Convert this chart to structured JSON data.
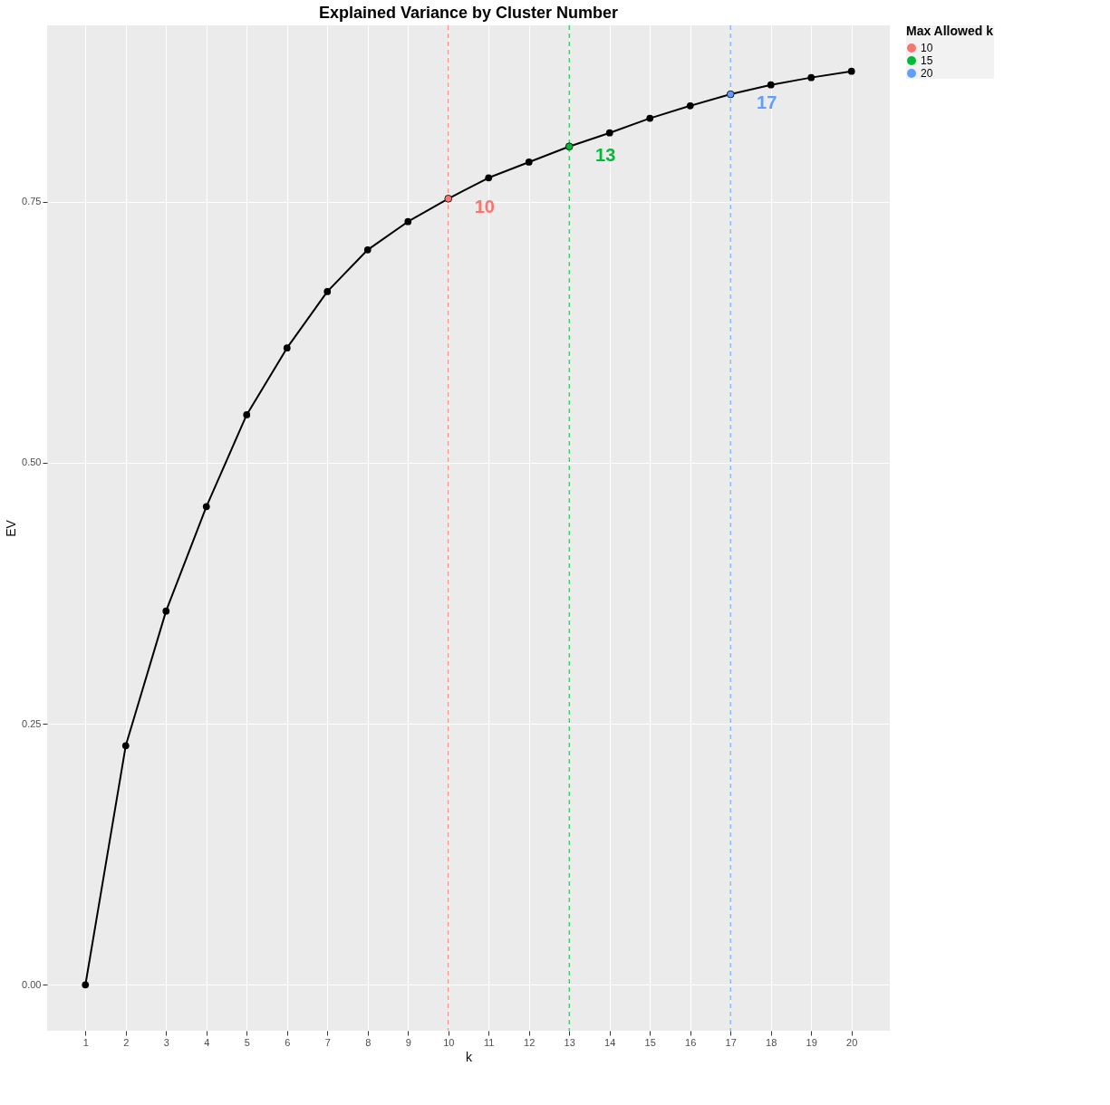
{
  "chart_data": {
    "type": "line",
    "title": "Explained Variance by Cluster Number",
    "xlabel": "k",
    "ylabel": "EV",
    "legend_title": "Max Allowed k",
    "xlim": [
      0.05,
      20.95
    ],
    "xticks": [
      1,
      2,
      3,
      4,
      5,
      6,
      7,
      8,
      9,
      10,
      11,
      12,
      13,
      14,
      15,
      16,
      17,
      18,
      19,
      20
    ],
    "ylim": [
      -0.044,
      0.919
    ],
    "yticks": [
      {
        "value": 0,
        "label": "0.00"
      },
      {
        "value": 0.25,
        "label": "0.25"
      },
      {
        "value": 0.5,
        "label": "0.50"
      },
      {
        "value": 0.75,
        "label": "0.75"
      }
    ],
    "grid": true,
    "legend": "right",
    "marker": "circle",
    "line_style": "solid",
    "series": [
      {
        "color": "#000000",
        "x": [
          1,
          2,
          3,
          4,
          5,
          6,
          7,
          8,
          9,
          10,
          11,
          12,
          13,
          14,
          15,
          16,
          17,
          18,
          19,
          20
        ],
        "values": [
          0,
          0.229,
          0.358,
          0.458,
          0.546,
          0.61,
          0.664,
          0.704,
          0.731,
          0.753,
          0.773,
          0.788,
          0.803,
          0.816,
          0.83,
          0.842,
          0.853,
          0.862,
          0.869,
          0.875
        ]
      },
      {
        "type": "scatter",
        "name": "10",
        "color": "#f8766d",
        "x": [
          10
        ],
        "values": [
          0.753
        ]
      },
      {
        "type": "scatter",
        "name": "15",
        "color": "#00ba38",
        "x": [
          13
        ],
        "values": [
          0.803
        ]
      },
      {
        "type": "scatter",
        "name": "20",
        "color": "#619cff",
        "x": [
          17
        ],
        "values": [
          0.853
        ]
      }
    ],
    "ref_lines": [
      {
        "axis": "x",
        "value": 10,
        "color": "#f8766d",
        "line_style": "dashed"
      },
      {
        "axis": "x",
        "value": 13,
        "color": "#00ba38",
        "line_style": "dashed"
      },
      {
        "axis": "x",
        "value": 17,
        "color": "#619cff",
        "line_style": "dashed"
      }
    ],
    "annotations": [
      "10",
      "13",
      "17"
    ]
  }
}
